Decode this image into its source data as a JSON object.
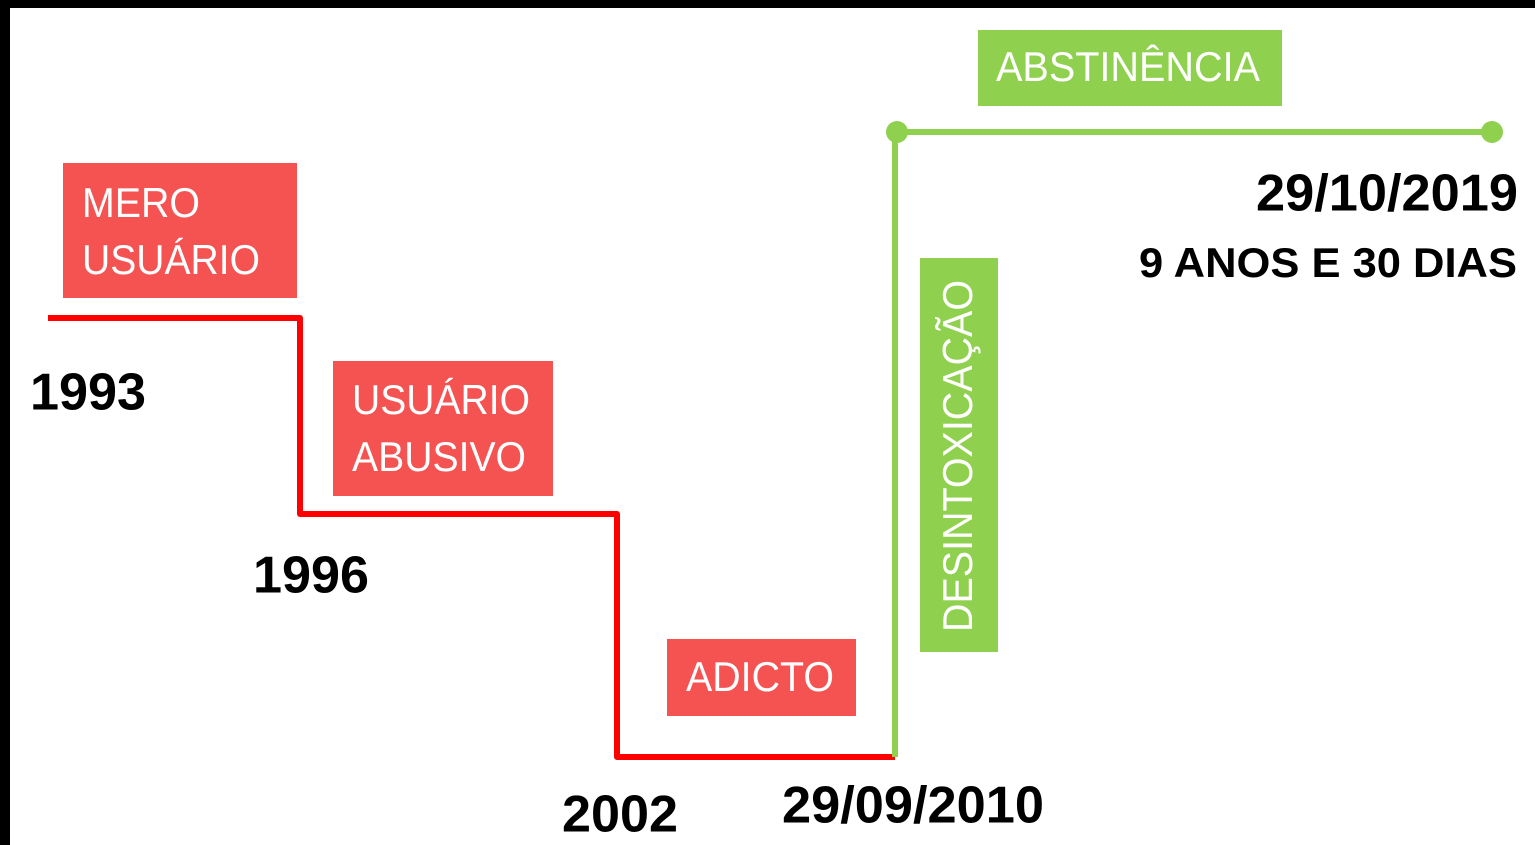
{
  "stages": [
    {
      "lines": [
        "MERO",
        "USUÁRIO"
      ]
    },
    {
      "lines": [
        "USUÁRIO",
        "ABUSIVO"
      ]
    },
    {
      "lines": [
        "ADICTO"
      ]
    },
    {
      "lines": [
        "DESINTOXICAÇÃO"
      ]
    },
    {
      "lines": [
        "ABSTINÊNCIA"
      ]
    }
  ],
  "dates": [
    "1993",
    "1996",
    "2002",
    "29/09/2010",
    "29/10/2019"
  ],
  "duration": "9 ANOS E 30 DIAS"
}
